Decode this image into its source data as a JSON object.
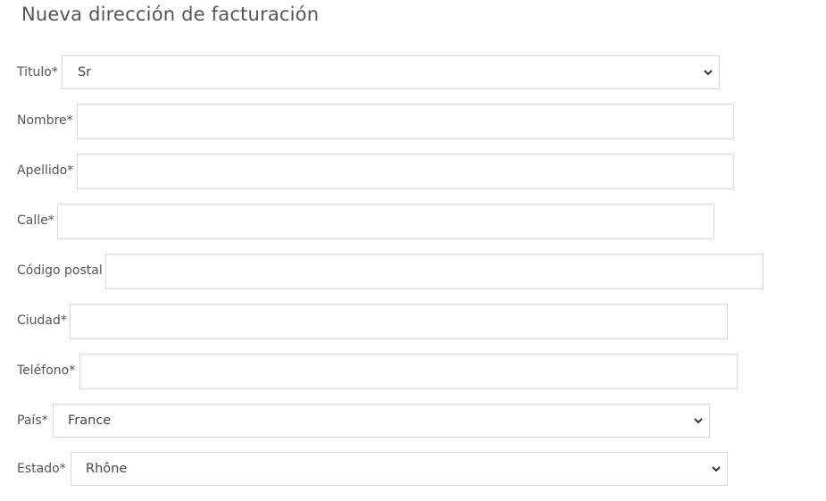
{
  "title": "Nueva dirección de facturación",
  "fields": {
    "titulo": {
      "label": "Titulo*",
      "value": "Sr"
    },
    "nombre": {
      "label": "Nombre*",
      "value": ""
    },
    "apellido": {
      "label": "Apellido*",
      "value": ""
    },
    "calle": {
      "label": "Calle*",
      "value": ""
    },
    "codigo_postal": {
      "label": "Código postal",
      "value": ""
    },
    "ciudad": {
      "label": "Ciudad*",
      "value": ""
    },
    "telefono": {
      "label": "Teléfono*",
      "value": ""
    },
    "pais": {
      "label": "País*",
      "value": "France"
    },
    "estado": {
      "label": "Estado*",
      "value": "Rhône"
    }
  }
}
